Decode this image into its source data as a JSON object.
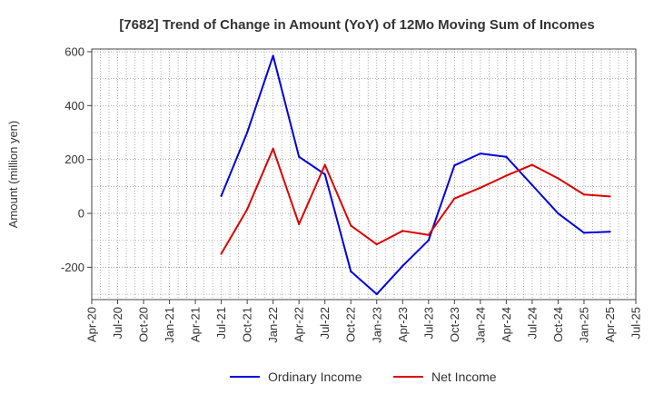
{
  "chart_data": {
    "type": "line",
    "title": "[7682]  Trend of Change in Amount (YoY) of 12Mo Moving Sum of Incomes",
    "xlabel": "",
    "ylabel": "Amount (million yen)",
    "categories": [
      "Apr-20",
      "Jul-20",
      "Oct-20",
      "Jan-21",
      "Apr-21",
      "Jul-21",
      "Oct-21",
      "Jan-22",
      "Apr-22",
      "Jul-22",
      "Oct-22",
      "Jan-23",
      "Apr-23",
      "Jul-23",
      "Oct-23",
      "Jan-24",
      "Apr-24",
      "Jul-24",
      "Oct-24",
      "Jan-25",
      "Apr-25",
      "Jul-25"
    ],
    "ylim": [
      -320,
      610
    ],
    "yticks": [
      -200,
      0,
      200,
      400,
      600
    ],
    "grid": true,
    "legend_position": "bottom-center",
    "series": [
      {
        "name": "Ordinary Income",
        "color": "#0000dd",
        "values": [
          null,
          null,
          null,
          null,
          null,
          65,
          300,
          585,
          210,
          145,
          -215,
          -300,
          -195,
          -100,
          178,
          222,
          210,
          105,
          0,
          -72,
          -68,
          null
        ]
      },
      {
        "name": "Net Income",
        "color": "#dd0000",
        "values": [
          null,
          null,
          null,
          null,
          null,
          -150,
          15,
          240,
          -40,
          180,
          -45,
          -115,
          -65,
          -80,
          55,
          95,
          140,
          180,
          130,
          70,
          63,
          null
        ]
      }
    ]
  }
}
